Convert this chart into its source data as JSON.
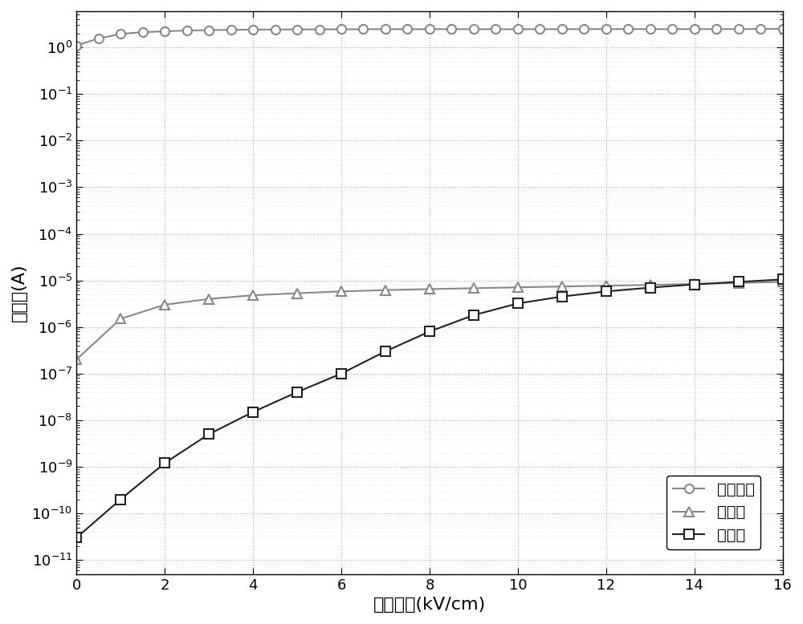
{
  "xlabel": "电场强度(kV/cm)",
  "ylabel": "暗电流(A)",
  "legend1": "现有方法",
  "legend2": "本发明",
  "legend3": "测量値",
  "xlim": [
    0,
    16
  ],
  "x_ticks": [
    0,
    2,
    4,
    6,
    8,
    10,
    12,
    14,
    16
  ],
  "series1_x": [
    0,
    0.5,
    1,
    1.5,
    2,
    2.5,
    3,
    3.5,
    4,
    4.5,
    5,
    5.5,
    6,
    6.5,
    7,
    7.5,
    8,
    8.5,
    9,
    9.5,
    10,
    10.5,
    11,
    11.5,
    12,
    12.5,
    13,
    13.5,
    14,
    14.5,
    15,
    15.5,
    16
  ],
  "series1_y": [
    1.1,
    1.55,
    1.95,
    2.12,
    2.22,
    2.3,
    2.35,
    2.38,
    2.4,
    2.42,
    2.43,
    2.44,
    2.45,
    2.45,
    2.46,
    2.46,
    2.46,
    2.46,
    2.46,
    2.46,
    2.46,
    2.46,
    2.46,
    2.47,
    2.47,
    2.47,
    2.47,
    2.47,
    2.47,
    2.47,
    2.47,
    2.48,
    2.5
  ],
  "series2_x": [
    0,
    1,
    2,
    3,
    4,
    5,
    6,
    7,
    8,
    9,
    10,
    11,
    12,
    13,
    14,
    15,
    16
  ],
  "series2_y": [
    2e-07,
    1.5e-06,
    3e-06,
    4e-06,
    4.8e-06,
    5.3e-06,
    5.8e-06,
    6.2e-06,
    6.5e-06,
    6.8e-06,
    7.1e-06,
    7.4e-06,
    7.7e-06,
    8e-06,
    8.4e-06,
    8.8e-06,
    9.3e-06
  ],
  "series3_x": [
    0,
    1,
    2,
    3,
    4,
    5,
    6,
    7,
    8,
    9,
    10,
    11,
    12,
    13,
    14,
    15,
    16
  ],
  "series3_y": [
    3e-11,
    2e-10,
    1.2e-09,
    5e-09,
    1.5e-08,
    4e-08,
    1e-07,
    3e-07,
    8e-07,
    1.8e-06,
    3.2e-06,
    4.5e-06,
    5.8e-06,
    7e-06,
    8.2e-06,
    9.3e-06,
    1.05e-05
  ],
  "ymin": 5e-12,
  "ymax": 6.0,
  "line_color_1": "#888888",
  "line_color_2": "#888888",
  "line_color_3": "#222222"
}
